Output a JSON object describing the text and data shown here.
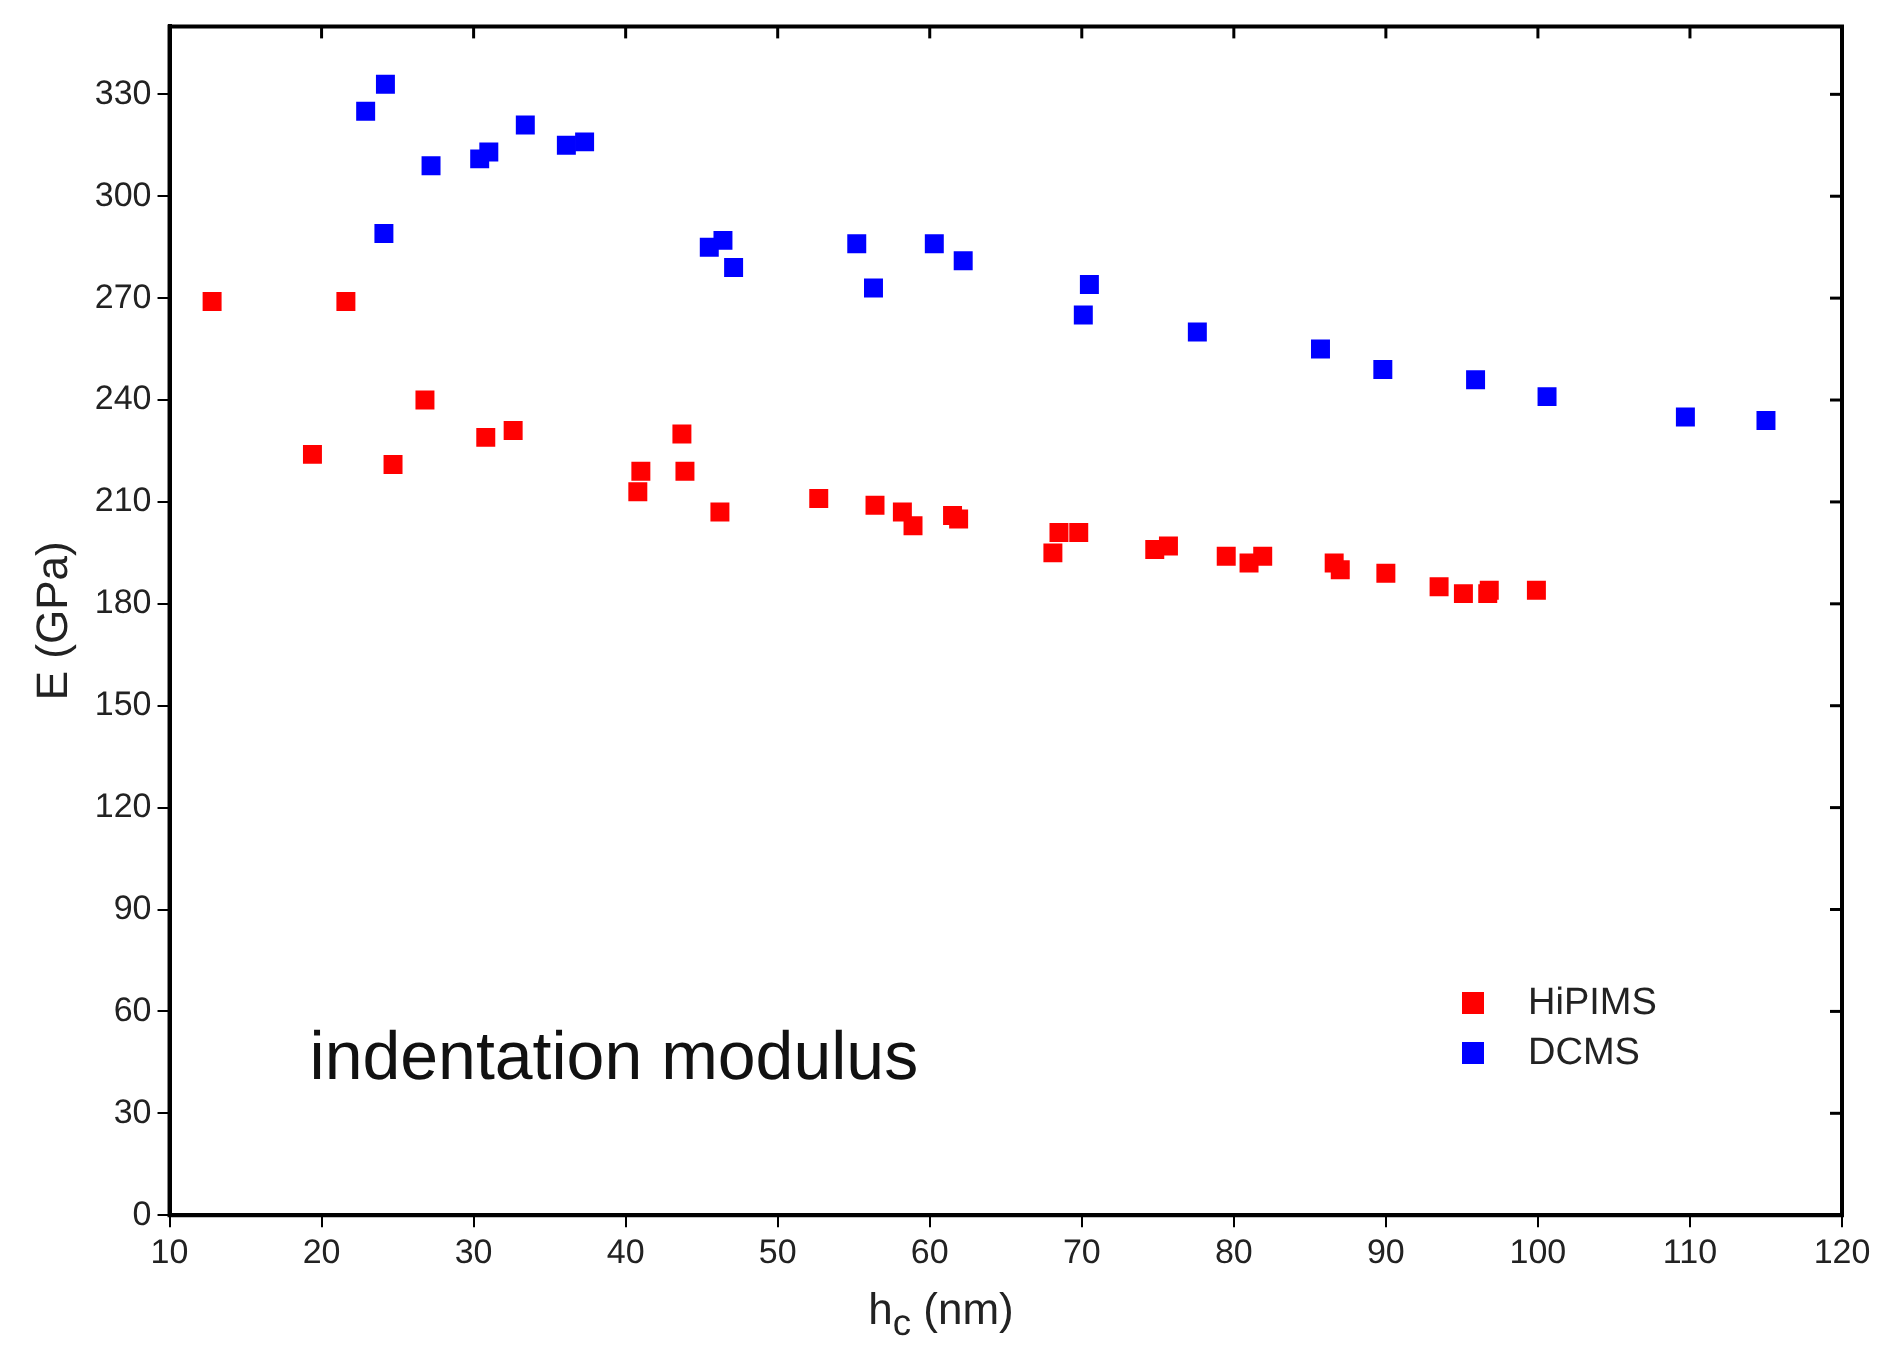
{
  "chart_data": {
    "type": "scatter",
    "xlabel": "h$_{c}$ (nm)",
    "ylabel": "E (GPa)",
    "xlim": [
      10,
      120
    ],
    "xticks": [
      10,
      20,
      30,
      40,
      50,
      60,
      70,
      80,
      90,
      100,
      110,
      120
    ],
    "ylim": [
      0,
      350
    ],
    "yticks": [
      0,
      30,
      60,
      90,
      120,
      150,
      180,
      210,
      240,
      270,
      300,
      330
    ],
    "grid": false,
    "legend": "bottom right",
    "marker": "square",
    "annotations": [
      "indentation modulus"
    ],
    "series": [
      {
        "name": "HiPIMS",
        "color": "#ff0000",
        "x": [
          12.8,
          19.4,
          21.6,
          24.7,
          26.8,
          30.8,
          32.6,
          40.8,
          41,
          43.7,
          43.9,
          46.2,
          52.7,
          56.4,
          58.2,
          58.9,
          61.5,
          61.9,
          68.1,
          68.5,
          69.8,
          74.8,
          75.7,
          79.5,
          81,
          81.9,
          86.6,
          87,
          90,
          93.5,
          95.1,
          96.7,
          96.8,
          99.9
        ],
        "values": [
          269,
          224,
          269,
          221,
          240,
          229,
          231,
          213,
          219,
          230,
          219,
          207,
          211,
          209,
          207,
          203,
          206,
          205,
          195,
          201,
          201,
          196,
          197,
          194,
          192,
          194,
          192,
          190,
          189,
          185,
          183,
          183,
          184,
          184
        ]
      },
      {
        "name": "DCMS",
        "color": "#0000ff",
        "x": [
          22.9,
          24.2,
          24.1,
          27.2,
          30.4,
          31,
          33.4,
          36.1,
          37.3,
          45.5,
          46.4,
          47.1,
          55.2,
          56.3,
          60.3,
          62.2,
          70.1,
          70.5,
          77.6,
          85.7,
          89.8,
          95.9,
          100.6,
          109.7,
          115
        ],
        "values": [
          325,
          333,
          289,
          309,
          311,
          313,
          321,
          315,
          316,
          285,
          287,
          279,
          286,
          273,
          286,
          281,
          265,
          274,
          260,
          255,
          249,
          246,
          241,
          235,
          234
        ]
      }
    ]
  }
}
